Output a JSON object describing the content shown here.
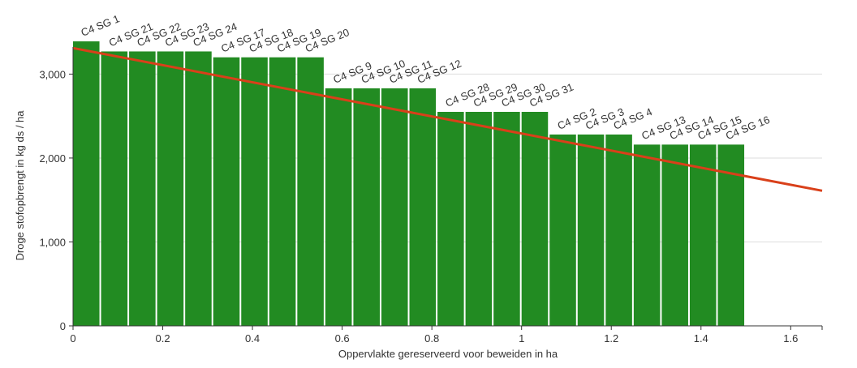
{
  "chart_data": {
    "type": "bar",
    "title": "",
    "xlabel": "Oppervlakte gereserveerd voor beweiden in ha",
    "ylabel": "Droge stofopbrengt in kg ds / ha",
    "xlim": [
      0,
      1.67
    ],
    "ylim": [
      0,
      3400
    ],
    "x_ticks": [
      0,
      0.2,
      0.4,
      0.6,
      0.8,
      1,
      1.2,
      1.4,
      1.6
    ],
    "x_tick_labels": [
      "0",
      "0.2",
      "0.4",
      "0.6",
      "0.8",
      "1",
      "1.2",
      "1.4",
      "1.6"
    ],
    "y_ticks": [
      0,
      1000,
      2000,
      3000
    ],
    "y_tick_labels": [
      "0",
      "1,000",
      "2,000",
      "3,000"
    ],
    "grid": true,
    "bar_width_ha": 0.0625,
    "bar_color": "#228B22",
    "bars": [
      {
        "label": "C4 SG 1",
        "x": 0.0,
        "value": 3390
      },
      {
        "label": "C4 SG 21",
        "x": 0.0625,
        "value": 3270
      },
      {
        "label": "C4 SG 22",
        "x": 0.125,
        "value": 3270
      },
      {
        "label": "C4 SG 23",
        "x": 0.1875,
        "value": 3270
      },
      {
        "label": "C4 SG 24",
        "x": 0.25,
        "value": 3270
      },
      {
        "label": "C4 SG 17",
        "x": 0.3125,
        "value": 3200
      },
      {
        "label": "C4 SG 18",
        "x": 0.375,
        "value": 3200
      },
      {
        "label": "C4 SG 19",
        "x": 0.4375,
        "value": 3200
      },
      {
        "label": "C4 SG 20",
        "x": 0.5,
        "value": 3200
      },
      {
        "label": "C4 SG 9",
        "x": 0.5625,
        "value": 2830
      },
      {
        "label": "C4 SG 10",
        "x": 0.625,
        "value": 2830
      },
      {
        "label": "C4 SG 11",
        "x": 0.6875,
        "value": 2830
      },
      {
        "label": "C4 SG 12",
        "x": 0.75,
        "value": 2830
      },
      {
        "label": "C4 SG 28",
        "x": 0.8125,
        "value": 2550
      },
      {
        "label": "C4 SG 29",
        "x": 0.875,
        "value": 2550
      },
      {
        "label": "C4 SG 30",
        "x": 0.9375,
        "value": 2550
      },
      {
        "label": "C4 SG 31",
        "x": 1.0,
        "value": 2550
      },
      {
        "label": "C4 SG 2",
        "x": 1.0625,
        "value": 2280
      },
      {
        "label": "C4 SG 3",
        "x": 1.125,
        "value": 2280
      },
      {
        "label": "C4 SG 4",
        "x": 1.1875,
        "value": 2280
      },
      {
        "label": "C4 SG 13",
        "x": 1.25,
        "value": 2160
      },
      {
        "label": "C4 SG 14",
        "x": 1.3125,
        "value": 2160
      },
      {
        "label": "C4 SG 15",
        "x": 1.375,
        "value": 2160
      },
      {
        "label": "C4 SG 16",
        "x": 1.4375,
        "value": 2160
      }
    ],
    "trend_line": {
      "color": "#d9401a",
      "points": [
        [
          0,
          3310
        ],
        [
          1.67,
          1610
        ]
      ]
    }
  }
}
